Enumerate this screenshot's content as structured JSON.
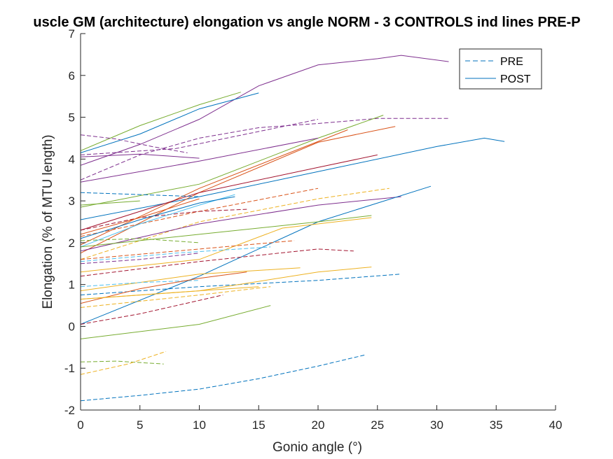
{
  "chart_data": {
    "type": "line",
    "title": "uscle GM (architecture) elongation vs angle NORM - 3 CONTROLS ind lines PRE-P",
    "xlabel": "Gonio angle (°)",
    "ylabel": "Elongation (% of MTU length)",
    "xlim": [
      0,
      40
    ],
    "ylim": [
      -2,
      7
    ],
    "xticks": [
      "0",
      "5",
      "10",
      "15",
      "20",
      "25",
      "30",
      "35",
      "40"
    ],
    "yticks": [
      "-2",
      "-1",
      "0",
      "1",
      "2",
      "3",
      "4",
      "5",
      "6",
      "7"
    ],
    "grid": false,
    "legend": {
      "position": "top-right",
      "entries": [
        {
          "label": "PRE",
          "style": "dashed",
          "color": "#0072bd"
        },
        {
          "label": "POST",
          "style": "solid",
          "color": "#0072bd"
        }
      ]
    },
    "series": [
      {
        "color": "#7e2f8e",
        "style": "solid",
        "x": [
          0,
          5,
          10,
          15,
          20,
          25,
          27,
          31
        ],
        "y": [
          3.85,
          4.35,
          4.95,
          5.75,
          6.25,
          6.4,
          6.48,
          6.33
        ]
      },
      {
        "color": "#0072bd",
        "style": "solid",
        "x": [
          0,
          5,
          10,
          15
        ],
        "y": [
          4.15,
          4.6,
          5.2,
          5.58
        ]
      },
      {
        "color": "#77ac30",
        "style": "solid",
        "x": [
          0,
          5,
          10,
          13.5
        ],
        "y": [
          4.2,
          4.8,
          5.3,
          5.6
        ]
      },
      {
        "color": "#7e2f8e",
        "style": "dashed",
        "x": [
          0,
          5,
          10,
          15,
          20,
          25,
          31
        ],
        "y": [
          3.5,
          4.1,
          4.5,
          4.75,
          4.85,
          4.97,
          4.97
        ]
      },
      {
        "color": "#7e2f8e",
        "style": "dashed",
        "x": [
          0,
          3,
          6,
          9
        ],
        "y": [
          4.58,
          4.48,
          4.3,
          4.15
        ]
      },
      {
        "color": "#7e2f8e",
        "style": "solid",
        "x": [
          0,
          5,
          10
        ],
        "y": [
          4.05,
          4.12,
          4.02
        ]
      },
      {
        "color": "#7e2f8e",
        "style": "dashed",
        "x": [
          0,
          8,
          20
        ],
        "y": [
          4.1,
          4.25,
          4.95
        ]
      },
      {
        "color": "#0072bd",
        "style": "solid",
        "x": [
          0,
          10,
          20,
          30,
          34,
          35.7
        ],
        "y": [
          2.55,
          3.1,
          3.7,
          4.3,
          4.5,
          4.42
        ]
      },
      {
        "color": "#77ac30",
        "style": "solid",
        "x": [
          0,
          10,
          20,
          25.5
        ],
        "y": [
          2.85,
          3.4,
          4.5,
          5.05
        ]
      },
      {
        "color": "#d95319",
        "style": "solid",
        "x": [
          0,
          10,
          20,
          26.5
        ],
        "y": [
          1.75,
          3.2,
          4.4,
          4.78
        ]
      },
      {
        "color": "#d95319",
        "style": "solid",
        "x": [
          0,
          10,
          22.5
        ],
        "y": [
          1.95,
          3.3,
          4.7
        ]
      },
      {
        "color": "#a2142f",
        "style": "solid",
        "x": [
          0,
          10,
          20,
          25
        ],
        "y": [
          2.3,
          3.2,
          3.8,
          4.1
        ]
      },
      {
        "color": "#7e2f8e",
        "style": "solid",
        "x": [
          0,
          10,
          20
        ],
        "y": [
          3.45,
          3.95,
          4.5
        ]
      },
      {
        "color": "#0072bd",
        "style": "dashed",
        "x": [
          0,
          5,
          10
        ],
        "y": [
          3.2,
          3.15,
          3.1
        ]
      },
      {
        "color": "#d95319",
        "style": "dashed",
        "x": [
          0,
          10,
          20
        ],
        "y": [
          2.15,
          2.75,
          3.3
        ]
      },
      {
        "color": "#edb120",
        "style": "dashed",
        "x": [
          0,
          10,
          20,
          26
        ],
        "y": [
          1.6,
          2.5,
          3.05,
          3.3
        ]
      },
      {
        "color": "#77ac30",
        "style": "solid",
        "x": [
          0,
          5
        ],
        "y": [
          2.9,
          3.0
        ]
      },
      {
        "color": "#a2142f",
        "style": "dashed",
        "x": [
          0,
          5,
          10,
          14
        ],
        "y": [
          2.3,
          2.6,
          2.75,
          2.8
        ]
      },
      {
        "color": "#4dbeee",
        "style": "solid",
        "x": [
          0,
          5,
          10,
          13
        ],
        "y": [
          1.9,
          2.45,
          2.9,
          3.15
        ]
      },
      {
        "color": "#0072bd",
        "style": "solid",
        "x": [
          0,
          5,
          10,
          13
        ],
        "y": [
          2.1,
          2.55,
          2.95,
          3.1
        ]
      },
      {
        "color": "#d95319",
        "style": "solid",
        "x": [
          0,
          5,
          10
        ],
        "y": [
          2.2,
          2.6,
          3.05
        ]
      },
      {
        "color": "#7e2f8e",
        "style": "solid",
        "x": [
          0,
          10,
          20,
          27
        ],
        "y": [
          1.8,
          2.45,
          2.9,
          3.1
        ]
      },
      {
        "color": "#0072bd",
        "style": "solid",
        "x": [
          0,
          10,
          20,
          29.5
        ],
        "y": [
          0.05,
          1.2,
          2.5,
          3.35
        ]
      },
      {
        "color": "#77ac30",
        "style": "solid",
        "x": [
          0,
          10,
          20,
          24.5
        ],
        "y": [
          1.9,
          2.2,
          2.5,
          2.65
        ]
      },
      {
        "color": "#edb120",
        "style": "solid",
        "x": [
          0,
          10,
          17,
          24.5
        ],
        "y": [
          1.3,
          1.6,
          2.35,
          2.6
        ]
      },
      {
        "color": "#4dbeee",
        "style": "dashed",
        "x": [
          0,
          8,
          16
        ],
        "y": [
          1.55,
          1.75,
          1.9
        ]
      },
      {
        "color": "#77ac30",
        "style": "dashed",
        "x": [
          0,
          5,
          10
        ],
        "y": [
          2.05,
          2.1,
          2.0
        ]
      },
      {
        "color": "#d95319",
        "style": "dashed",
        "x": [
          0,
          10,
          18
        ],
        "y": [
          1.6,
          1.85,
          2.05
        ]
      },
      {
        "color": "#a2142f",
        "style": "dashed",
        "x": [
          0,
          10,
          20,
          23
        ],
        "y": [
          1.2,
          1.55,
          1.85,
          1.8
        ]
      },
      {
        "color": "#7e2f8e",
        "style": "dashed",
        "x": [
          0,
          5,
          10
        ],
        "y": [
          1.5,
          1.6,
          1.75
        ]
      },
      {
        "color": "#edb120",
        "style": "solid",
        "x": [
          0,
          10,
          18.5
        ],
        "y": [
          0.85,
          1.25,
          1.4
        ]
      },
      {
        "color": "#0072bd",
        "style": "dashed",
        "x": [
          0,
          10,
          20,
          27
        ],
        "y": [
          0.75,
          0.95,
          1.1,
          1.25
        ]
      },
      {
        "color": "#4dbeee",
        "style": "dashed",
        "x": [
          0,
          5,
          10
        ],
        "y": [
          0.95,
          1.05,
          1.1
        ]
      },
      {
        "color": "#edb120",
        "style": "solid",
        "x": [
          0,
          10,
          20,
          24.5
        ],
        "y": [
          0.65,
          0.85,
          1.3,
          1.42
        ]
      },
      {
        "color": "#edb120",
        "style": "dashed",
        "x": [
          0,
          10,
          16
        ],
        "y": [
          0.45,
          0.75,
          0.95
        ]
      },
      {
        "color": "#d95319",
        "style": "solid",
        "x": [
          0,
          5,
          10,
          14
        ],
        "y": [
          0.55,
          0.9,
          1.15,
          1.3
        ]
      },
      {
        "color": "#a2142f",
        "style": "dashed",
        "x": [
          0,
          5,
          12
        ],
        "y": [
          0.05,
          0.3,
          0.75
        ]
      },
      {
        "color": "#77ac30",
        "style": "solid",
        "x": [
          0,
          10,
          16
        ],
        "y": [
          -0.3,
          0.05,
          0.5
        ]
      },
      {
        "color": "#edb120",
        "style": "solid",
        "x": [
          0,
          5,
          15
        ],
        "y": [
          0.65,
          0.75,
          0.95
        ]
      },
      {
        "color": "#77ac30",
        "style": "dashed",
        "x": [
          0,
          3,
          7
        ],
        "y": [
          -0.85,
          -0.83,
          -0.9
        ]
      },
      {
        "color": "#edb120",
        "style": "dashed",
        "x": [
          0,
          4,
          7.2
        ],
        "y": [
          -1.15,
          -0.9,
          -0.6
        ]
      },
      {
        "color": "#0072bd",
        "style": "dashed",
        "x": [
          0,
          5,
          10,
          15,
          20,
          24
        ],
        "y": [
          -1.78,
          -1.65,
          -1.5,
          -1.25,
          -0.95,
          -0.68
        ]
      }
    ]
  }
}
